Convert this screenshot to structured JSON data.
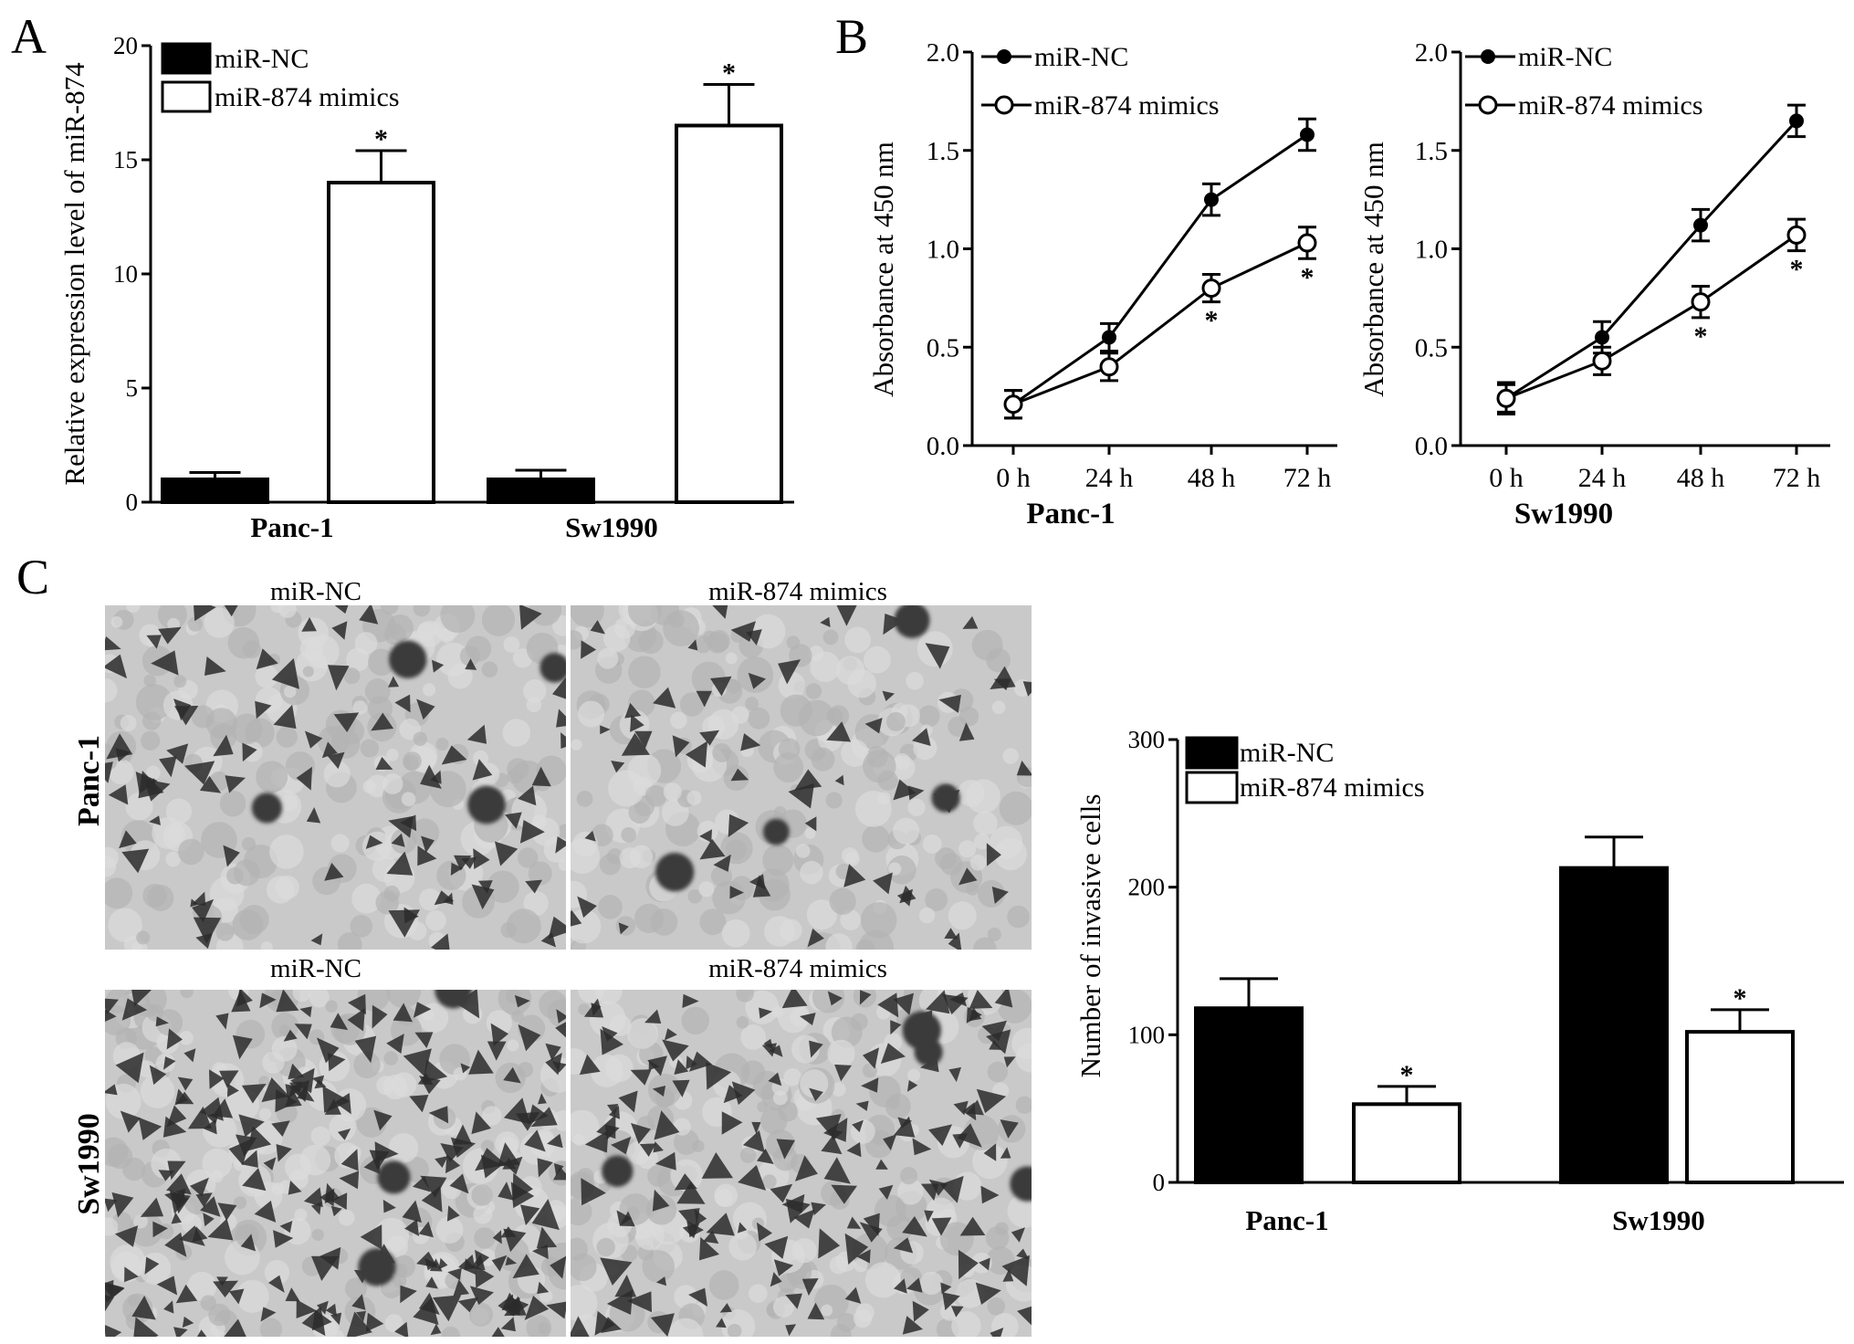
{
  "panels": {
    "a": "A",
    "b": "B",
    "c": "C"
  },
  "legend": {
    "nc": "miR-NC",
    "mimics": "miR-874 mimics"
  },
  "star": "*",
  "micro": {
    "col_labels": [
      "miR-NC",
      "miR-874 mimics",
      "miR-NC",
      "miR-874 mimics"
    ],
    "row_labels": [
      "Panc-1",
      "Sw1990"
    ]
  },
  "colors": {
    "nc": "#000000",
    "mimics": "#ffffff",
    "micro_bg": "#c9c9c9",
    "micro_cell": "#2b2b2b"
  },
  "chart_data": [
    {
      "id": "A",
      "type": "bar",
      "ylabel": "Relative expression level of miR-874",
      "ylim": [
        0,
        20
      ],
      "yticks": [
        0,
        5,
        10,
        15,
        20
      ],
      "categories": [
        "Panc-1",
        "Sw1990"
      ],
      "series": [
        {
          "name": "miR-NC",
          "values": [
            1.0,
            1.0
          ],
          "errors": [
            0.3,
            0.4
          ]
        },
        {
          "name": "miR-874 mimics",
          "values": [
            14.0,
            16.5
          ],
          "errors": [
            1.4,
            1.8
          ]
        }
      ],
      "significant": [
        "mimics:Panc-1",
        "mimics:Sw1990"
      ]
    },
    {
      "id": "B1",
      "type": "line",
      "xlabel": "Panc-1",
      "ylabel": "Absorbance at 450 nm",
      "ylim": [
        0,
        2.0
      ],
      "yticks": [
        "0.0",
        "0.5",
        "1.0",
        "1.5",
        "2.0"
      ],
      "x": [
        "0 h",
        "24 h",
        "48 h",
        "72 h"
      ],
      "series": [
        {
          "name": "miR-NC",
          "values": [
            0.21,
            0.55,
            1.25,
            1.58
          ],
          "errors": [
            0.07,
            0.07,
            0.08,
            0.08
          ]
        },
        {
          "name": "miR-874 mimics",
          "values": [
            0.21,
            0.4,
            0.8,
            1.03
          ],
          "errors": [
            0.07,
            0.07,
            0.07,
            0.08
          ]
        }
      ],
      "significant_points": [
        2,
        3
      ]
    },
    {
      "id": "B2",
      "type": "line",
      "xlabel": "Sw1990",
      "ylabel": "Absorbance at 450 nm",
      "ylim": [
        0,
        2.0
      ],
      "yticks": [
        "0.0",
        "0.5",
        "1.0",
        "1.5",
        "2.0"
      ],
      "x": [
        "0 h",
        "24 h",
        "48 h",
        "72 h"
      ],
      "series": [
        {
          "name": "miR-NC",
          "values": [
            0.24,
            0.55,
            1.12,
            1.65
          ],
          "errors": [
            0.08,
            0.08,
            0.08,
            0.08
          ]
        },
        {
          "name": "miR-874 mimics",
          "values": [
            0.24,
            0.43,
            0.73,
            1.07
          ],
          "errors": [
            0.07,
            0.07,
            0.08,
            0.08
          ]
        }
      ],
      "significant_points": [
        2,
        3
      ]
    },
    {
      "id": "C",
      "type": "bar",
      "ylabel": "Number of invasive cells",
      "ylim": [
        0,
        300
      ],
      "yticks": [
        0,
        100,
        200,
        300
      ],
      "categories": [
        "Panc-1",
        "Sw1990"
      ],
      "series": [
        {
          "name": "miR-NC",
          "values": [
            118,
            213
          ],
          "errors": [
            20,
            21
          ]
        },
        {
          "name": "miR-874 mimics",
          "values": [
            53,
            102
          ],
          "errors": [
            12,
            15
          ]
        }
      ],
      "significant": [
        "mimics:Panc-1",
        "mimics:Sw1990"
      ]
    }
  ]
}
